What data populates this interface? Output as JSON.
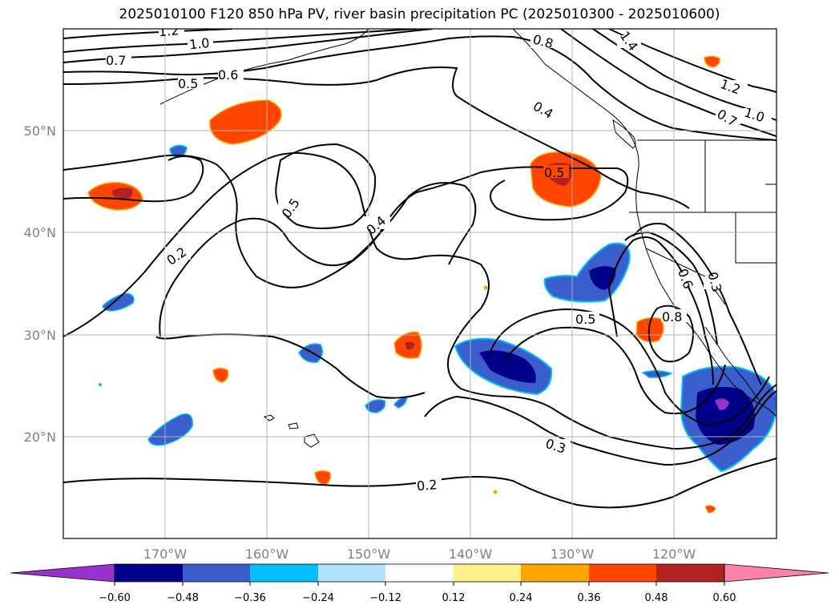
{
  "title": "2025010100 F120 850 hPa PV, river basin precipitation PC (2025010300 - 2025010600)",
  "map": {
    "extent": {
      "lon": [
        -180,
        -110
      ],
      "lat": [
        10,
        60
      ]
    },
    "lon_ticks": [
      {
        "value": -170,
        "label": "170°W"
      },
      {
        "value": -160,
        "label": "160°W"
      },
      {
        "value": -150,
        "label": "150°W"
      },
      {
        "value": -140,
        "label": "140°W"
      },
      {
        "value": -130,
        "label": "130°W"
      },
      {
        "value": -120,
        "label": "120°W"
      }
    ],
    "lat_ticks": [
      {
        "value": 20,
        "label": "20°N"
      },
      {
        "value": 30,
        "label": "30°N"
      },
      {
        "value": 40,
        "label": "40°N"
      },
      {
        "value": 50,
        "label": "50°N"
      }
    ],
    "gridlines": true,
    "contour_labels": [
      "1.2",
      "1.0",
      "0.7",
      "0.5",
      "0.6",
      "0.8",
      "0.4",
      "1.4",
      "1.2",
      "1.0",
      "0.7",
      "0.5",
      "0.5",
      "0.4",
      "0.2",
      "0.5",
      "0.8",
      "0.3",
      "0.3",
      "0.2",
      "0.6"
    ]
  },
  "colorbar": {
    "extend": "both",
    "ticks": [
      "−0.60",
      "−0.48",
      "−0.36",
      "−0.24",
      "−0.12",
      "0.12",
      "0.24",
      "0.36",
      "0.48",
      "0.60"
    ],
    "colors": {
      "below_min": "#9932cc",
      "-0.60_-0.48": "#00008b",
      "-0.48_-0.36": "#3a5fcd",
      "-0.36_-0.24": "#00bfff",
      "-0.24_-0.12": "#b0e2ff",
      "-0.12_0.12": "#ffffff",
      "0.12_0.24": "#fff08a",
      "0.24_0.36": "#ffa500",
      "0.36_0.48": "#ff4500",
      "0.48_0.60": "#b22222",
      "above_max": "#ff82ab"
    }
  }
}
